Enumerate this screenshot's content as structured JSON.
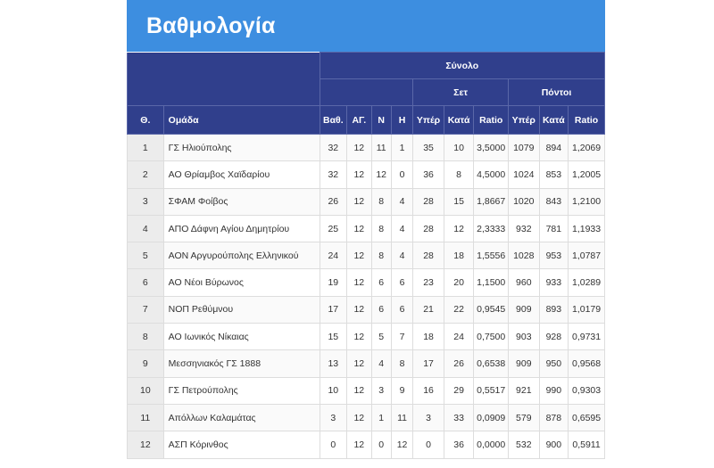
{
  "title": "Βαθμολογία",
  "headers": {
    "group_total": "Σύνολο",
    "group_sets": "Σετ",
    "group_points": "Πόντοι",
    "pos": "Θ.",
    "team": "Ομάδα",
    "pts": "Βαθ.",
    "played": "ΑΓ.",
    "wins": "Ν",
    "losses": "Η",
    "sets_for": "Υπέρ",
    "sets_against": "Κατά",
    "sets_ratio": "Ratio",
    "points_for": "Υπέρ",
    "points_against": "Κατά",
    "points_ratio": "Ratio"
  },
  "rows": [
    {
      "pos": "1",
      "team": "ΓΣ Ηλιούπολης",
      "pts": "32",
      "played": "12",
      "wins": "11",
      "losses": "1",
      "sets_for": "35",
      "sets_against": "10",
      "sets_ratio": "3,5000",
      "points_for": "1079",
      "points_against": "894",
      "points_ratio": "1,2069"
    },
    {
      "pos": "2",
      "team": "ΑΟ Θρίαμβος Χαϊδαρίου",
      "pts": "32",
      "played": "12",
      "wins": "12",
      "losses": "0",
      "sets_for": "36",
      "sets_against": "8",
      "sets_ratio": "4,5000",
      "points_for": "1024",
      "points_against": "853",
      "points_ratio": "1,2005"
    },
    {
      "pos": "3",
      "team": "ΣΦΑΜ Φοίβος",
      "pts": "26",
      "played": "12",
      "wins": "8",
      "losses": "4",
      "sets_for": "28",
      "sets_against": "15",
      "sets_ratio": "1,8667",
      "points_for": "1020",
      "points_against": "843",
      "points_ratio": "1,2100"
    },
    {
      "pos": "4",
      "team": "ΑΠΟ Δάφνη Αγίου Δημητρίου",
      "pts": "25",
      "played": "12",
      "wins": "8",
      "losses": "4",
      "sets_for": "28",
      "sets_against": "12",
      "sets_ratio": "2,3333",
      "points_for": "932",
      "points_against": "781",
      "points_ratio": "1,1933"
    },
    {
      "pos": "5",
      "team": "ΑΟΝ Αργυρούπολης Ελληνικού",
      "pts": "24",
      "played": "12",
      "wins": "8",
      "losses": "4",
      "sets_for": "28",
      "sets_against": "18",
      "sets_ratio": "1,5556",
      "points_for": "1028",
      "points_against": "953",
      "points_ratio": "1,0787"
    },
    {
      "pos": "6",
      "team": "ΑΟ Νέοι Βύρωνος",
      "pts": "19",
      "played": "12",
      "wins": "6",
      "losses": "6",
      "sets_for": "23",
      "sets_against": "20",
      "sets_ratio": "1,1500",
      "points_for": "960",
      "points_against": "933",
      "points_ratio": "1,0289"
    },
    {
      "pos": "7",
      "team": "ΝΟΠ Ρεθύμνου",
      "pts": "17",
      "played": "12",
      "wins": "6",
      "losses": "6",
      "sets_for": "21",
      "sets_against": "22",
      "sets_ratio": "0,9545",
      "points_for": "909",
      "points_against": "893",
      "points_ratio": "1,0179"
    },
    {
      "pos": "8",
      "team": "ΑΟ Ιωνικός Νίκαιας",
      "pts": "15",
      "played": "12",
      "wins": "5",
      "losses": "7",
      "sets_for": "18",
      "sets_against": "24",
      "sets_ratio": "0,7500",
      "points_for": "903",
      "points_against": "928",
      "points_ratio": "0,9731"
    },
    {
      "pos": "9",
      "team": "Μεσσηνιακός ΓΣ 1888",
      "pts": "13",
      "played": "12",
      "wins": "4",
      "losses": "8",
      "sets_for": "17",
      "sets_against": "26",
      "sets_ratio": "0,6538",
      "points_for": "909",
      "points_against": "950",
      "points_ratio": "0,9568"
    },
    {
      "pos": "10",
      "team": "ΓΣ Πετρούπολης",
      "pts": "10",
      "played": "12",
      "wins": "3",
      "losses": "9",
      "sets_for": "16",
      "sets_against": "29",
      "sets_ratio": "0,5517",
      "points_for": "921",
      "points_against": "990",
      "points_ratio": "0,9303"
    },
    {
      "pos": "11",
      "team": "Απόλλων Καλαμάτας",
      "pts": "3",
      "played": "12",
      "wins": "1",
      "losses": "11",
      "sets_for": "3",
      "sets_against": "33",
      "sets_ratio": "0,0909",
      "points_for": "579",
      "points_against": "878",
      "points_ratio": "0,6595"
    },
    {
      "pos": "12",
      "team": "ΑΣΠ Κόρινθος",
      "pts": "0",
      "played": "12",
      "wins": "0",
      "losses": "12",
      "sets_for": "0",
      "sets_against": "36",
      "sets_ratio": "0,0000",
      "points_for": "532",
      "points_against": "900",
      "points_ratio": "0,5911"
    }
  ],
  "colors": {
    "header_bg": "#3d8ee0",
    "table_header_bg": "#303f8c",
    "pos_cell_bg": "#ececec"
  }
}
